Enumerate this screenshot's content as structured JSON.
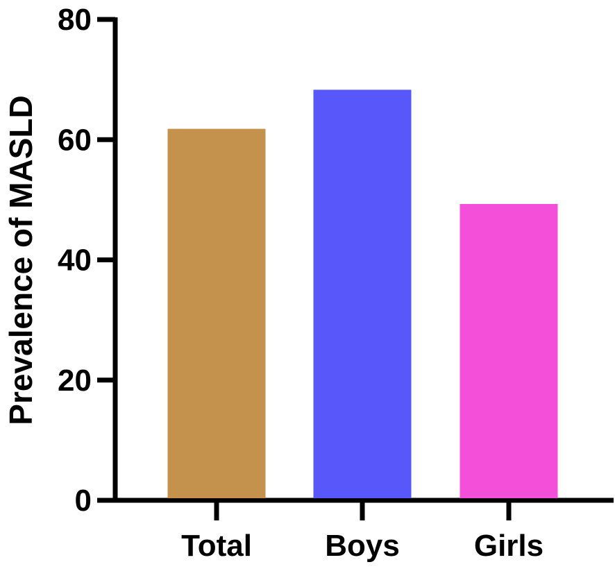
{
  "chart_data": {
    "type": "bar",
    "title": "",
    "xlabel": "",
    "ylabel": "Prevalence of MASLD",
    "categories": [
      "Total",
      "Boys",
      "Girls"
    ],
    "values": [
      61.8,
      68.3,
      49.3
    ],
    "colors": [
      "#C4924D",
      "#5757FA",
      "#F44FD8"
    ],
    "ylim": [
      0,
      80
    ],
    "yticks": [
      "0",
      "20",
      "40",
      "60",
      "80"
    ],
    "grid": false,
    "legend": "none"
  }
}
